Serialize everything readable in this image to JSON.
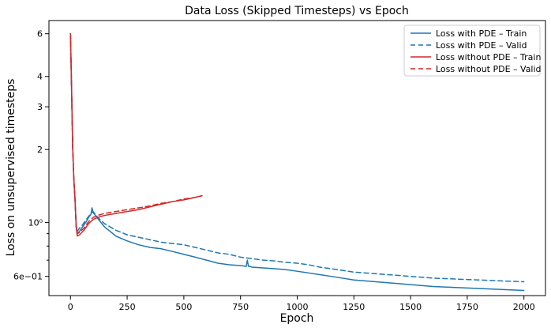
{
  "chart_data": {
    "type": "line",
    "title": "Data Loss (Skipped Timesteps) vs Epoch",
    "xlabel": "Epoch",
    "ylabel": "Loss on unsupervised timesteps",
    "xlim": [
      -95,
      2095
    ],
    "ylim": [
      0.5,
      6.8
    ],
    "yscale": "log",
    "grid": false,
    "legend_position": "top-right",
    "x_ticks": [
      0,
      250,
      500,
      750,
      1000,
      1250,
      1500,
      1750,
      2000
    ],
    "x_tick_labels": [
      "0",
      "250",
      "500",
      "750",
      "1000",
      "1250",
      "1500",
      "1750",
      "2000"
    ],
    "y_ticks": [
      0.6,
      1,
      2,
      3,
      4,
      6
    ],
    "y_tick_labels": [
      "6e−01",
      "10⁰",
      "2",
      "3",
      "4",
      "6"
    ],
    "y_minor_ticks": [
      0.7,
      0.8,
      0.9
    ],
    "series": [
      {
        "name": "Loss with PDE – Train",
        "color": "#1f77b4",
        "dash": "solid",
        "x": [
          0,
          5,
          10,
          15,
          20,
          25,
          30,
          40,
          50,
          60,
          70,
          80,
          90,
          95,
          100,
          110,
          120,
          150,
          200,
          250,
          300,
          350,
          400,
          450,
          500,
          550,
          600,
          650,
          700,
          750,
          775,
          780,
          785,
          790,
          800,
          850,
          900,
          950,
          1000,
          1050,
          1100,
          1150,
          1200,
          1250,
          1300,
          1400,
          1500,
          1600,
          1700,
          1800,
          1900,
          2000
        ],
        "y": [
          6.0,
          3.5,
          2.0,
          1.5,
          1.25,
          0.97,
          0.9,
          0.92,
          0.95,
          0.98,
          1.01,
          1.05,
          1.08,
          1.15,
          1.1,
          1.07,
          1.04,
          0.96,
          0.88,
          0.84,
          0.81,
          0.79,
          0.78,
          0.76,
          0.74,
          0.72,
          0.7,
          0.68,
          0.67,
          0.665,
          0.66,
          0.7,
          0.66,
          0.66,
          0.655,
          0.65,
          0.645,
          0.64,
          0.63,
          0.62,
          0.61,
          0.6,
          0.59,
          0.58,
          0.575,
          0.565,
          0.555,
          0.545,
          0.54,
          0.535,
          0.53,
          0.525
        ]
      },
      {
        "name": "Loss with PDE – Valid",
        "color": "#1f77b4",
        "dash": "dashed",
        "x": [
          0,
          5,
          10,
          15,
          20,
          25,
          30,
          40,
          50,
          60,
          70,
          80,
          90,
          100,
          110,
          120,
          150,
          200,
          250,
          300,
          350,
          400,
          450,
          500,
          550,
          600,
          650,
          700,
          750,
          800,
          850,
          900,
          950,
          1000,
          1050,
          1100,
          1150,
          1200,
          1250,
          1300,
          1400,
          1500,
          1600,
          1700,
          1800,
          1900,
          2000
        ],
        "y": [
          6.0,
          3.5,
          2.0,
          1.5,
          1.25,
          0.98,
          0.92,
          0.95,
          0.97,
          1.0,
          1.03,
          1.06,
          1.09,
          1.11,
          1.08,
          1.05,
          0.99,
          0.93,
          0.89,
          0.87,
          0.85,
          0.83,
          0.82,
          0.81,
          0.79,
          0.77,
          0.75,
          0.74,
          0.72,
          0.71,
          0.7,
          0.695,
          0.685,
          0.68,
          0.67,
          0.655,
          0.645,
          0.635,
          0.625,
          0.62,
          0.61,
          0.6,
          0.59,
          0.585,
          0.58,
          0.575,
          0.57
        ]
      },
      {
        "name": "Loss without PDE – Train",
        "color": "#d62728",
        "dash": "solid",
        "x": [
          0,
          5,
          10,
          15,
          20,
          25,
          30,
          40,
          50,
          60,
          70,
          80,
          90,
          100,
          120,
          150,
          200,
          250,
          300,
          350,
          400,
          450,
          500,
          550,
          580
        ],
        "y": [
          6.0,
          3.5,
          2.0,
          1.5,
          1.25,
          0.96,
          0.88,
          0.89,
          0.91,
          0.93,
          0.96,
          0.99,
          1.01,
          1.03,
          1.05,
          1.07,
          1.09,
          1.11,
          1.13,
          1.16,
          1.19,
          1.22,
          1.24,
          1.27,
          1.29
        ]
      },
      {
        "name": "Loss without PDE – Valid",
        "color": "#d62728",
        "dash": "dashed",
        "x": [
          0,
          5,
          10,
          15,
          20,
          25,
          30,
          40,
          50,
          60,
          70,
          80,
          90,
          100,
          120,
          150,
          200,
          250,
          300,
          350,
          400,
          450,
          500,
          550,
          580
        ],
        "y": [
          6.0,
          3.5,
          2.0,
          1.5,
          1.25,
          0.97,
          0.9,
          0.91,
          0.93,
          0.95,
          0.98,
          1.01,
          1.03,
          1.05,
          1.07,
          1.09,
          1.11,
          1.13,
          1.15,
          1.17,
          1.2,
          1.22,
          1.25,
          1.27,
          1.29
        ]
      }
    ]
  }
}
